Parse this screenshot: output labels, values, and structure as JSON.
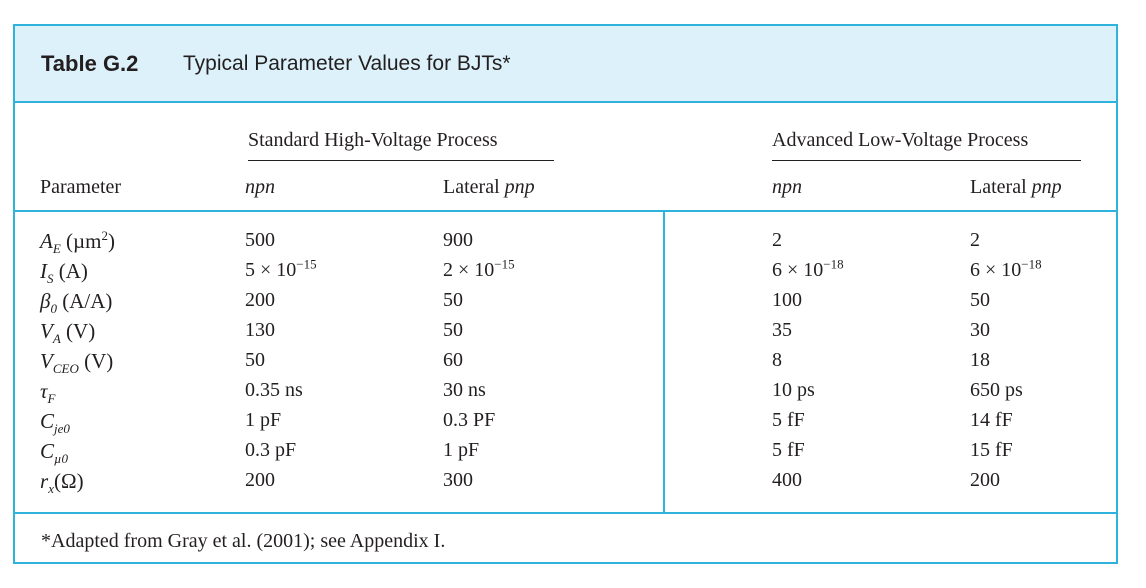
{
  "title": {
    "label": "Table G.2",
    "text": "Typical Parameter Values for BJTs*"
  },
  "groups": {
    "standard": "Standard High-Voltage Process",
    "advanced": "Advanced Low-Voltage Process"
  },
  "headers": {
    "parameter": "Parameter",
    "std_npn": "npn",
    "std_pnp_prefix": "Lateral",
    "std_pnp_italic": "pnp",
    "adv_npn": "npn",
    "adv_pnp_prefix": "Lateral",
    "adv_pnp_italic": "pnp"
  },
  "rows": [
    {
      "sym": "A",
      "sub": "E",
      "unit_html": " (µm<sup>2</sup>)",
      "c1": "500",
      "c2": "900",
      "c3": "2",
      "c4": "2"
    },
    {
      "sym": "I",
      "sub": "S",
      "unit_html": " (A)",
      "c1": "5 × 10",
      "c1sup": "−15",
      "c2": "2 × 10",
      "c2sup": "−15",
      "c3": "6 × 10",
      "c3sup": "−18",
      "c4": "6 × 10",
      "c4sup": "−18"
    },
    {
      "sym": "β",
      "sub": "0",
      "unit_html": " (A/A)",
      "c1": "200",
      "c2": "50",
      "c3": "100",
      "c4": "50"
    },
    {
      "sym": "V",
      "sub": "A",
      "unit_html": " (V)",
      "c1": "130",
      "c2": "50",
      "c3": "35",
      "c4": "30"
    },
    {
      "sym": "V",
      "sub": "CEO",
      "unit_html": " (V)",
      "c1": "50",
      "c2": "60",
      "c3": "8",
      "c4": "18"
    },
    {
      "sym": "τ",
      "sub": "F",
      "unit_html": "",
      "c1": "0.35 ns",
      "c2": "30 ns",
      "c3": "10 ps",
      "c4": "650 ps"
    },
    {
      "sym": "C",
      "sub": "je0",
      "unit_html": "",
      "c1": "1 pF",
      "c2": "0.3 PF",
      "c3": "5 fF",
      "c4": "14 fF"
    },
    {
      "sym": "C",
      "sub": "µ0",
      "unit_html": "",
      "c1": "0.3 pF",
      "c2": "1 pF",
      "c3": "5 fF",
      "c4": "15 fF"
    },
    {
      "sym": "r",
      "sub": "x",
      "unit_html": "(Ω)",
      "c1": "200",
      "c2": "300",
      "c3": "400",
      "c4": "200"
    }
  ],
  "footnote": "*Adapted from Gray et al. (2001); see Appendix I.",
  "colors": {
    "border": "#2fb3dc",
    "title_bg": "#dcf1fa",
    "text": "#231f20"
  }
}
